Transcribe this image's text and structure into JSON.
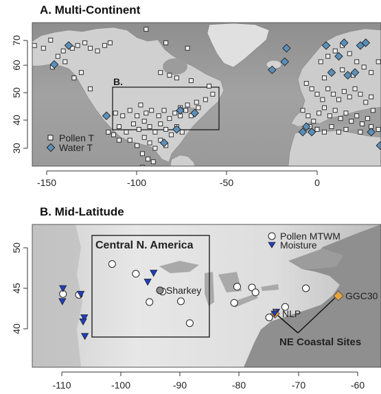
{
  "panels": {
    "a": {
      "title": "A. Multi-Continent",
      "inset_label": "B.",
      "y_ticks": [
        "30",
        "40",
        "50",
        "60",
        "70"
      ],
      "x_ticks": [
        "-150",
        "-100",
        "-50",
        "0"
      ],
      "legend": [
        {
          "label": "Pollen T",
          "symbol": "square"
        },
        {
          "label": "Water T",
          "symbol": "diamond"
        }
      ]
    },
    "b": {
      "title": "B. Mid-Latitude",
      "region_label": "Central N. America",
      "y_ticks": [
        "40",
        "45",
        "50"
      ],
      "x_ticks": [
        "-110",
        "-100",
        "-90",
        "-80",
        "-70",
        "-60"
      ],
      "legend": [
        {
          "label": "Pollen MTWM",
          "symbol": "circle"
        },
        {
          "label": "Moisture",
          "symbol": "triangle"
        }
      ],
      "site_labels": {
        "sharkey": "Sharkey",
        "nlp": "NLP",
        "ggc": "GGC30",
        "coastal": "NE Coastal Sites"
      }
    }
  },
  "colors": {
    "water_t": "#5b8fb9",
    "moisture": "#1f3fbf",
    "coastal_site": "#e8a33a",
    "land_light": "#e6e6e6",
    "sea": "#9a9a9a"
  },
  "points": {
    "a_pollen": [
      [
        -160,
        66
      ],
      [
        -157,
        68
      ],
      [
        -152,
        67
      ],
      [
        -148,
        70
      ],
      [
        -144,
        64
      ],
      [
        -141,
        66
      ],
      [
        -136,
        67
      ],
      [
        -133,
        68
      ],
      [
        -129,
        69
      ],
      [
        -126,
        67
      ],
      [
        -122,
        66
      ],
      [
        -118,
        68
      ],
      [
        -115,
        69
      ],
      [
        -126,
        52
      ],
      [
        -131,
        58
      ],
      [
        -135,
        56
      ],
      [
        -140,
        62
      ],
      [
        -147,
        60
      ],
      [
        -95,
        74
      ],
      [
        -84,
        69
      ],
      [
        -72,
        67
      ],
      [
        -87,
        58
      ],
      [
        -82,
        57
      ],
      [
        -78,
        56
      ],
      [
        -70,
        55
      ],
      [
        -60,
        53
      ],
      [
        -58,
        50
      ],
      [
        -62,
        48
      ],
      [
        -67,
        47
      ],
      [
        -72,
        46
      ],
      [
        -76,
        45
      ],
      [
        -112,
        43
      ],
      [
        -108,
        42
      ],
      [
        -104,
        44
      ],
      [
        -100,
        42
      ],
      [
        -98,
        46
      ],
      [
        -95,
        43
      ],
      [
        -92,
        44
      ],
      [
        -88,
        42
      ],
      [
        -85,
        44
      ],
      [
        -82,
        41
      ],
      [
        -79,
        43
      ],
      [
        -76,
        42
      ],
      [
        -73,
        44
      ],
      [
        -70,
        42
      ],
      [
        -66,
        45
      ],
      [
        -110,
        38
      ],
      [
        -106,
        36
      ],
      [
        -102,
        39
      ],
      [
        -99,
        37
      ],
      [
        -96,
        40
      ],
      [
        -93,
        38
      ],
      [
        -90,
        36
      ],
      [
        -87,
        39
      ],
      [
        -84,
        37
      ],
      [
        -81,
        35
      ],
      [
        -78,
        38
      ],
      [
        -75,
        36
      ],
      [
        -104,
        33
      ],
      [
        -100,
        31
      ],
      [
        -96,
        34
      ],
      [
        -93,
        32
      ],
      [
        -90,
        30
      ],
      [
        -87,
        33
      ],
      [
        -84,
        31
      ],
      [
        -97,
        28
      ],
      [
        -94,
        26
      ],
      [
        -91,
        25
      ],
      [
        -97,
        23
      ],
      [
        -116,
        36
      ],
      [
        -113,
        35
      ],
      [
        -110,
        33
      ],
      [
        2,
        62
      ],
      [
        6,
        64
      ],
      [
        10,
        66
      ],
      [
        14,
        68
      ],
      [
        18,
        65
      ],
      [
        22,
        62
      ],
      [
        26,
        60
      ],
      [
        30,
        58
      ],
      [
        34,
        62
      ],
      [
        20,
        57
      ],
      [
        14,
        59
      ],
      [
        8,
        58
      ],
      [
        4,
        56
      ],
      [
        -6,
        54
      ],
      [
        -3,
        52
      ],
      [
        0,
        50
      ],
      [
        3,
        48
      ],
      [
        6,
        52
      ],
      [
        9,
        50
      ],
      [
        12,
        48
      ],
      [
        15,
        51
      ],
      [
        18,
        49
      ],
      [
        21,
        52
      ],
      [
        24,
        50
      ],
      [
        27,
        47
      ],
      [
        30,
        49
      ],
      [
        -8,
        44
      ],
      [
        -5,
        42
      ],
      [
        -2,
        40
      ],
      [
        1,
        43
      ],
      [
        4,
        45
      ],
      [
        7,
        42
      ],
      [
        10,
        44
      ],
      [
        13,
        41
      ],
      [
        16,
        43
      ],
      [
        19,
        40
      ],
      [
        22,
        42
      ],
      [
        25,
        39
      ],
      [
        28,
        41
      ],
      [
        31,
        44
      ],
      [
        -4,
        38
      ],
      [
        0,
        37
      ],
      [
        4,
        36
      ],
      [
        8,
        38
      ],
      [
        12,
        36
      ],
      [
        16,
        37
      ],
      [
        24,
        36
      ],
      [
        30,
        38
      ],
      [
        34,
        37
      ]
    ],
    "a_water": [
      [
        -146,
        61
      ],
      [
        -138,
        68
      ],
      [
        -117,
        42
      ],
      [
        -78,
        37
      ],
      [
        -76,
        44
      ],
      [
        -68,
        43
      ],
      [
        -25,
        59
      ],
      [
        -18,
        62
      ],
      [
        -17,
        67
      ],
      [
        -8,
        36
      ],
      [
        -6,
        38
      ],
      [
        -3,
        36
      ],
      [
        5,
        68
      ],
      [
        8,
        58
      ],
      [
        12,
        64
      ],
      [
        15,
        69
      ],
      [
        17,
        57
      ],
      [
        21,
        58
      ],
      [
        24,
        68
      ],
      [
        27,
        69
      ],
      [
        30,
        36
      ],
      [
        35,
        31
      ],
      [
        -85,
        32
      ]
    ],
    "b_pollen": [
      [
        -101.5,
        48.0
      ],
      [
        -97.5,
        46.8
      ],
      [
        -95.2,
        43.3
      ],
      [
        -93.0,
        44.6
      ],
      [
        -89.9,
        43.4
      ],
      [
        -88.4,
        40.7
      ],
      [
        -109.8,
        44.3
      ],
      [
        -107.1,
        44.2
      ],
      [
        -80.4,
        45.2
      ],
      [
        -77.9,
        45.1
      ],
      [
        -77.3,
        44.5
      ],
      [
        -80.9,
        43.2
      ],
      [
        -75.0,
        41.4
      ],
      [
        -72.3,
        42.7
      ],
      [
        -68.8,
        45.0
      ]
    ],
    "b_moisture": [
      [
        -109.8,
        45.0
      ],
      [
        -109.9,
        43.4
      ],
      [
        -106.8,
        44.3
      ],
      [
        -106.2,
        41.4
      ],
      [
        -106.4,
        40.9
      ],
      [
        -106.1,
        39.1
      ],
      [
        -95.5,
        45.8
      ],
      [
        -94.5,
        46.9
      ],
      [
        -73.8,
        42.1
      ]
    ]
  }
}
